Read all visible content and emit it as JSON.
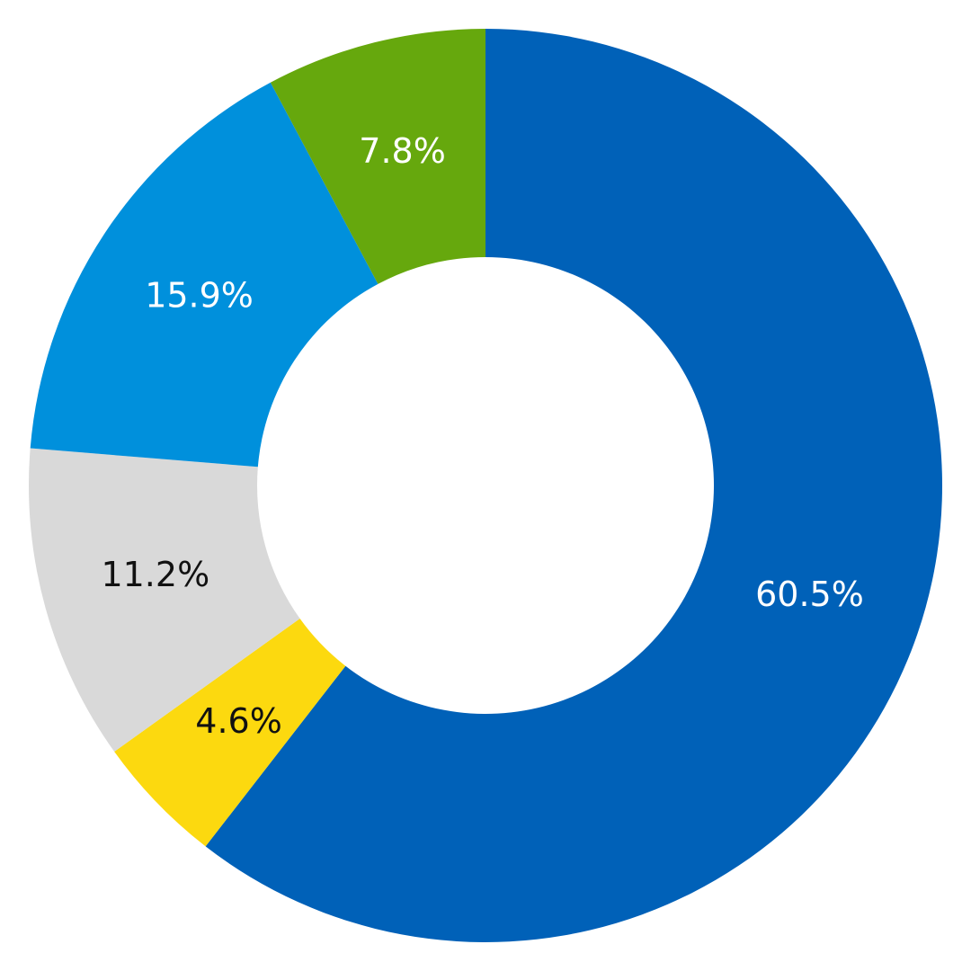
{
  "chart_data": {
    "type": "donut",
    "values": [
      60.5,
      4.6,
      11.2,
      15.9,
      7.8
    ],
    "value_labels": [
      "60.5%",
      "4.6%",
      "11.2%",
      "15.9%",
      "7.8%"
    ],
    "colors": [
      "#0061b8",
      "#fcd90f",
      "#d9d9d9",
      "#0090dc",
      "#66a80d"
    ]
  }
}
